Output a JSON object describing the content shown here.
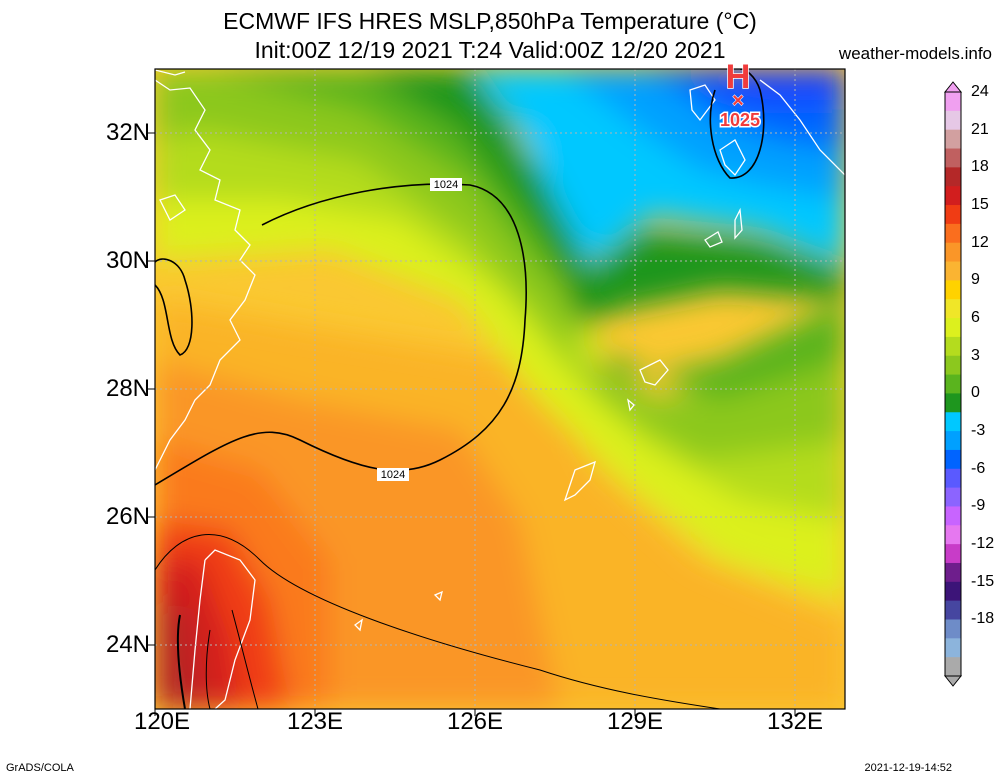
{
  "title": {
    "line1": "ECMWF IFS HRES MSLP,850hPa Temperature (°C)",
    "line2": "Init:00Z 12/19 2021 T:24 Valid:00Z 12/20 2021"
  },
  "site": "weather-models.info",
  "footer": {
    "left": "GrADS/COLA",
    "right": "2021-12-19-14:52"
  },
  "lat_labels": [
    "32N",
    "30N",
    "28N",
    "26N",
    "24N"
  ],
  "lon_labels": [
    "120E",
    "123E",
    "126E",
    "129E",
    "132E"
  ],
  "isobar_labels": [
    "1024",
    "1024"
  ],
  "high": {
    "symbol": "H",
    "mark": "×",
    "value": "1025"
  },
  "colorbar": {
    "labels": [
      "24",
      "21",
      "18",
      "15",
      "12",
      "9",
      "6",
      "3",
      "0",
      "-3",
      "-6",
      "-9",
      "-12",
      "-15",
      "-18"
    ],
    "colors": [
      "#f0a0f0",
      "#e6c8e6",
      "#d2a0a0",
      "#c06060",
      "#b42828",
      "#d21e1e",
      "#f03c14",
      "#fa6e1e",
      "#fa9628",
      "#fab432",
      "#ffd200",
      "#f0e628",
      "#dcf01e",
      "#b4dc1e",
      "#8cc81e",
      "#5ab41e",
      "#1e961e",
      "#00c8ff",
      "#00a0ff",
      "#0064ff",
      "#5a5aff",
      "#8c64ff",
      "#c864ff",
      "#e678f0",
      "#c83cc8",
      "#6e1e8c",
      "#3c1478",
      "#4646a0",
      "#6e8cc8",
      "#8cb4dc",
      "#aaaaaa"
    ]
  }
}
